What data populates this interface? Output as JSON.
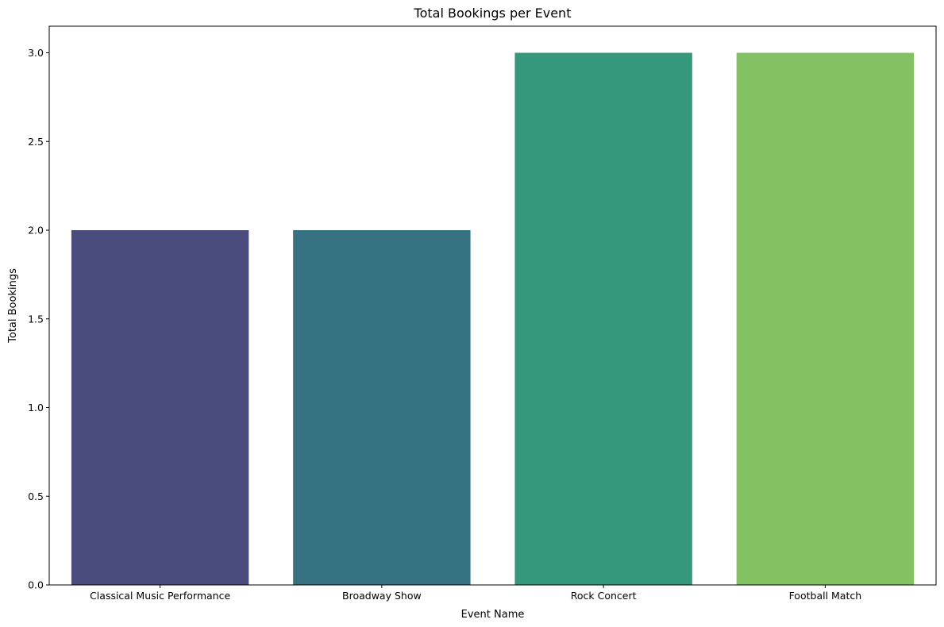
{
  "chart_data": {
    "type": "bar",
    "title": "Total Bookings per Event",
    "xlabel": "Event Name",
    "ylabel": "Total Bookings",
    "categories": [
      "Classical Music Performance",
      "Broadway Show",
      "Rock Concert",
      "Football Match"
    ],
    "values": [
      2,
      2,
      3,
      3
    ],
    "colors": [
      "#4a4c7d",
      "#367281",
      "#35977c",
      "#82c262"
    ],
    "ylim": [
      0,
      3.15
    ],
    "yticks": [
      0.0,
      0.5,
      1.0,
      1.5,
      2.0,
      2.5,
      3.0
    ],
    "ytick_labels": [
      "0.0",
      "0.5",
      "1.0",
      "1.5",
      "2.0",
      "2.5",
      "3.0"
    ],
    "grid": false,
    "legend": false
  }
}
